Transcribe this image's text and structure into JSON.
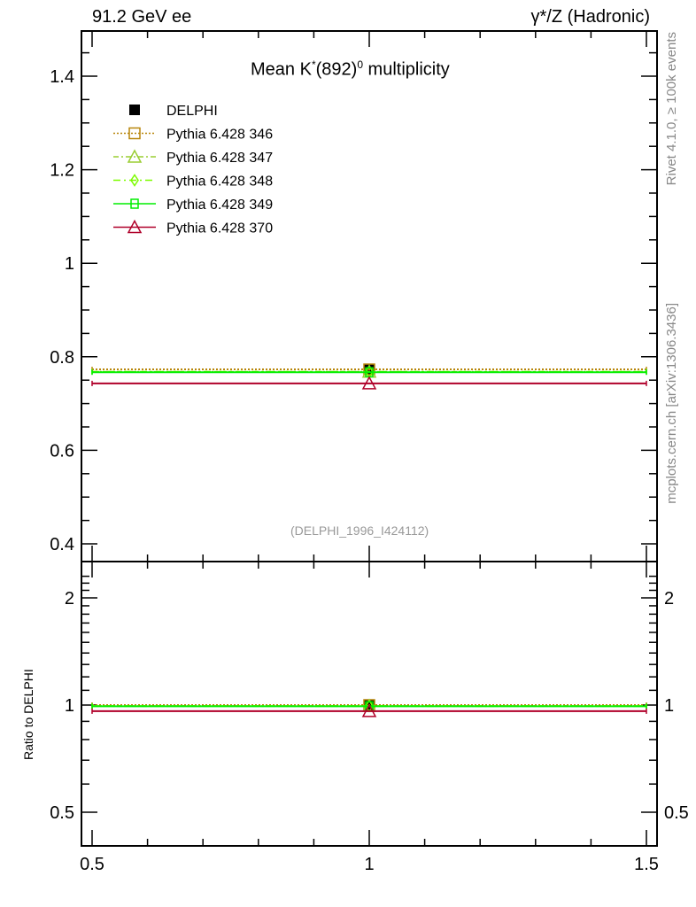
{
  "chart_data": {
    "type": "scatter",
    "header_left": "91.2 GeV ee",
    "header_right": "γ*/Z (Hadronic)",
    "title_main": "Mean K",
    "title_sup": "*",
    "title_mid": "(892)",
    "title_sup2": "0",
    "title_end": " multiplicity",
    "analysis_label": "(DELPHI_1996_I424112)",
    "side_label_top": "Rivet 4.1.0, ≥ 100k events",
    "side_label_bottom": "mcplots.cern.ch [arXiv:1306.3436]",
    "ratio_ylabel": "Ratio to DELPHI",
    "xlim": [
      0.5,
      1.5
    ],
    "ylim": [
      0.37,
      1.5
    ],
    "ratio_ylim": [
      0.42,
      2.3
    ],
    "ratio_scale": "log",
    "x_ticks": [
      "0.5",
      "1",
      "1.5"
    ],
    "y_ticks": [
      "0.4",
      "0.6",
      "0.8",
      "1",
      "1.2",
      "1.4"
    ],
    "ratio_ticks": [
      "0.5",
      "1",
      "2"
    ],
    "legend_position": "top-left",
    "series": [
      {
        "name": "DELPHI",
        "x": 1,
        "y": 0.773,
        "color": "#000000",
        "marker": "filled-square",
        "dash": "none"
      },
      {
        "name": "Pythia 6.428 346",
        "x": 1,
        "y": 0.773,
        "color": "#b8860b",
        "marker": "open-square",
        "dash": "dotted"
      },
      {
        "name": "Pythia 6.428 347",
        "x": 1,
        "y": 0.768,
        "color": "#9acd32",
        "marker": "open-triangle",
        "dash": "dashdot"
      },
      {
        "name": "Pythia 6.428 348",
        "x": 1,
        "y": 0.768,
        "color": "#7cfc00",
        "marker": "open-diamond",
        "dash": "dashdot2"
      },
      {
        "name": "Pythia 6.428 349",
        "x": 1,
        "y": 0.767,
        "color": "#00ee00",
        "marker": "open-cross",
        "dash": "solid"
      },
      {
        "name": "Pythia 6.428 370",
        "x": 1,
        "y": 0.743,
        "color": "#b0002a",
        "marker": "open-triangle",
        "dash": "solid"
      }
    ]
  }
}
